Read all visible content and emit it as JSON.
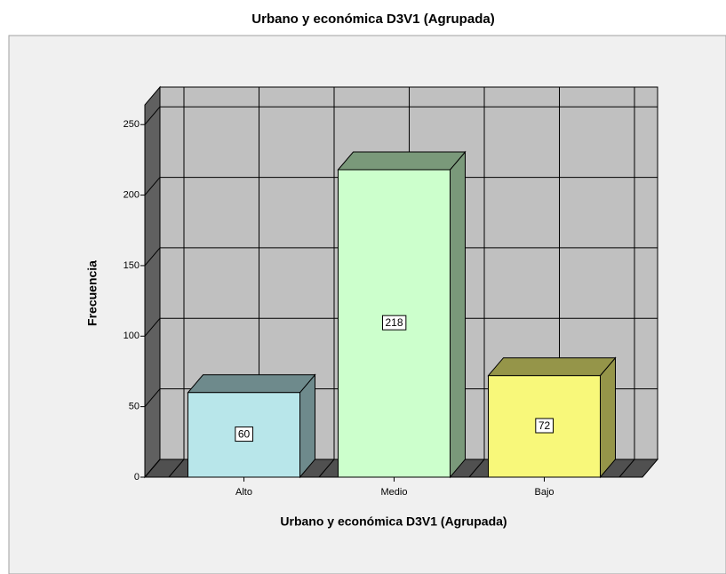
{
  "chart_data": {
    "type": "bar3d",
    "title": "Urbano y económica   D3V1 (Agrupada)",
    "x_label": "Urbano y económica   D3V1 (Agrupada)",
    "y_label": "Frecuencia",
    "categories": [
      "Alto",
      "Medio",
      "Bajo"
    ],
    "values": [
      60,
      218,
      72
    ],
    "colors": [
      "#b8e6ea",
      "#ccffcc",
      "#f8f87a"
    ],
    "ylim": [
      0,
      264
    ],
    "yticks": [
      0,
      50,
      100,
      150,
      200,
      250
    ],
    "grid": true
  }
}
